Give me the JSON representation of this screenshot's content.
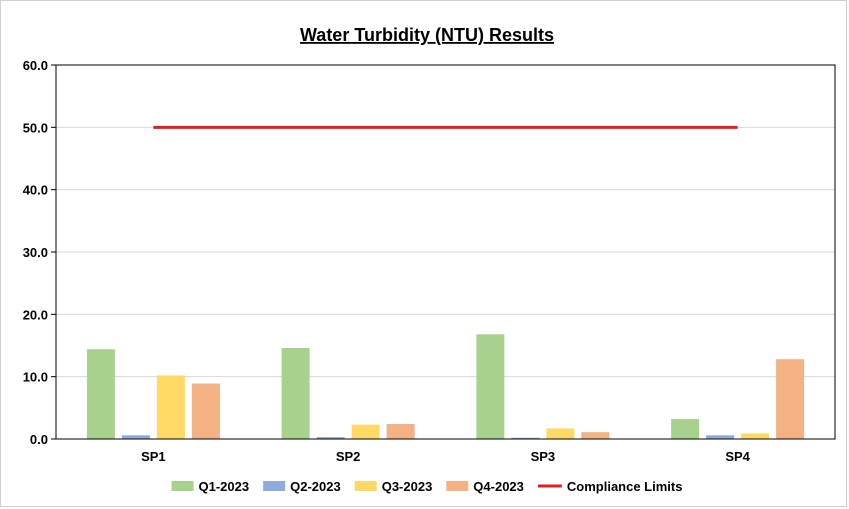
{
  "chart_data": {
    "type": "bar",
    "title": "Water Turbidity (NTU) Results",
    "xlabel": "",
    "ylabel": "",
    "ylim": [
      0,
      60
    ],
    "yticks": [
      "0.0",
      "10.0",
      "20.0",
      "30.0",
      "40.0",
      "50.0",
      "60.0"
    ],
    "categories": [
      "SP1",
      "SP2",
      "SP3",
      "SP4"
    ],
    "series": [
      {
        "name": "Q1-2023",
        "color": "#a9d18e",
        "values": [
          14.4,
          14.6,
          16.8,
          3.2
        ]
      },
      {
        "name": "Q2-2023",
        "color": "#8faadc",
        "values": [
          0.6,
          0.3,
          0.2,
          0.6
        ]
      },
      {
        "name": "Q3-2023",
        "color": "#ffd966",
        "values": [
          10.2,
          2.3,
          1.7,
          0.9
        ]
      },
      {
        "name": "Q4-2023",
        "color": "#f4b183",
        "values": [
          8.9,
          2.4,
          1.1,
          12.8
        ]
      }
    ],
    "reference_line": {
      "name": "Compliance Limits",
      "value": 50,
      "color": "#e02020"
    },
    "grid": true,
    "legend_position": "bottom"
  }
}
